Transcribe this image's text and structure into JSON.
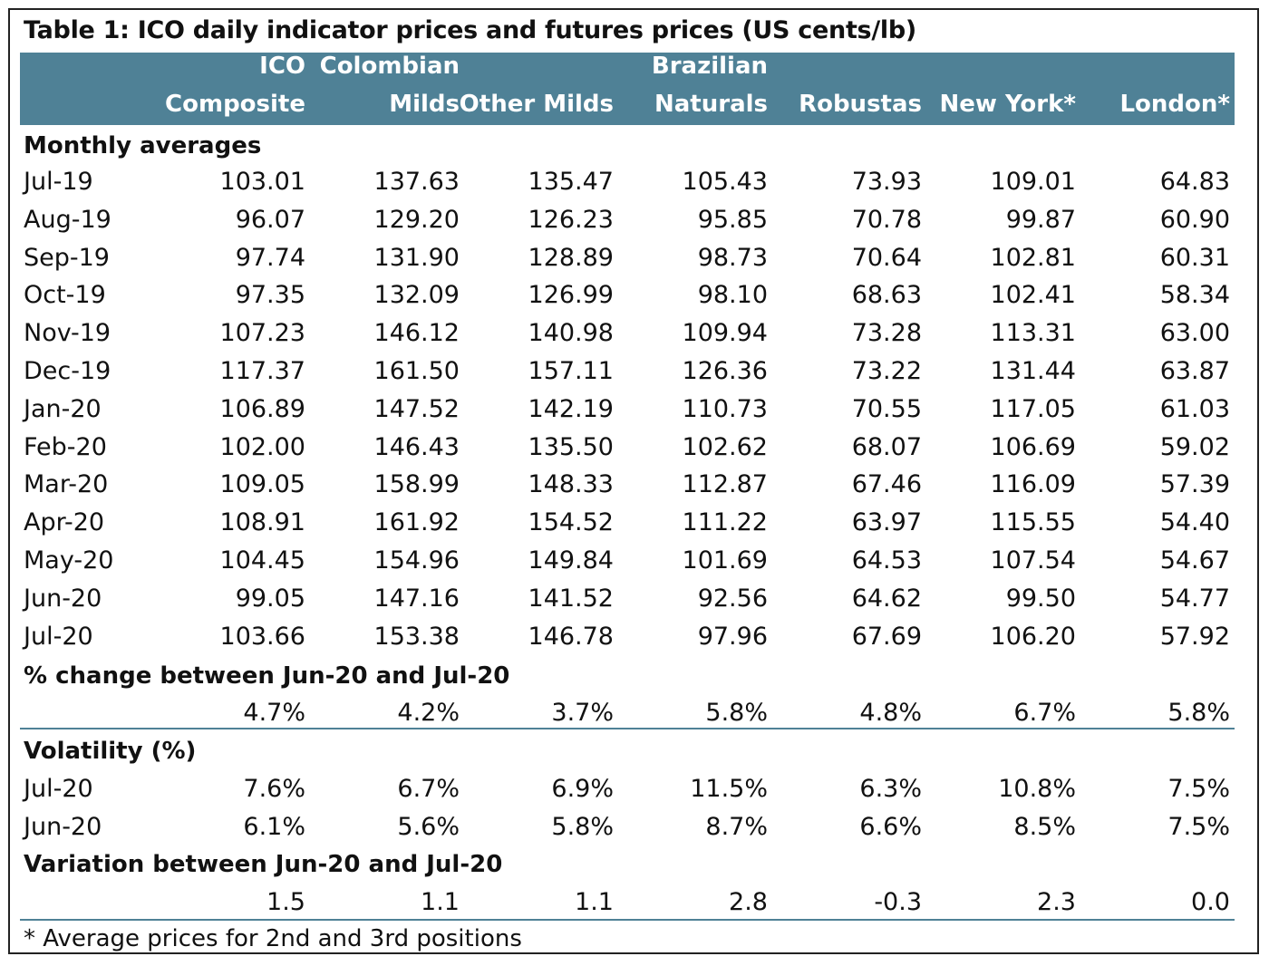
{
  "title": "Table 1: ICO daily indicator prices and futures prices (US cents/lb)",
  "columns": [
    {
      "line1": "ICO",
      "line2": "Composite"
    },
    {
      "line1": "Colombian",
      "line2": "Milds"
    },
    {
      "line1": "",
      "line2": "Other Milds"
    },
    {
      "line1": "Brazilian",
      "line2": "Naturals"
    },
    {
      "line1": "",
      "line2": "Robustas"
    },
    {
      "line1": "",
      "line2": "New York*"
    },
    {
      "line1": "",
      "line2": "London*"
    }
  ],
  "monthly": {
    "heading": "Monthly averages",
    "rows": [
      {
        "label": "Jul-19",
        "values": [
          "103.01",
          "137.63",
          "135.47",
          "105.43",
          "73.93",
          "109.01",
          "64.83"
        ]
      },
      {
        "label": "Aug-19",
        "values": [
          "96.07",
          "129.20",
          "126.23",
          "95.85",
          "70.78",
          "99.87",
          "60.90"
        ]
      },
      {
        "label": "Sep-19",
        "values": [
          "97.74",
          "131.90",
          "128.89",
          "98.73",
          "70.64",
          "102.81",
          "60.31"
        ]
      },
      {
        "label": "Oct-19",
        "values": [
          "97.35",
          "132.09",
          "126.99",
          "98.10",
          "68.63",
          "102.41",
          "58.34"
        ]
      },
      {
        "label": "Nov-19",
        "values": [
          "107.23",
          "146.12",
          "140.98",
          "109.94",
          "73.28",
          "113.31",
          "63.00"
        ]
      },
      {
        "label": "Dec-19",
        "values": [
          "117.37",
          "161.50",
          "157.11",
          "126.36",
          "73.22",
          "131.44",
          "63.87"
        ]
      },
      {
        "label": "Jan-20",
        "values": [
          "106.89",
          "147.52",
          "142.19",
          "110.73",
          "70.55",
          "117.05",
          "61.03"
        ]
      },
      {
        "label": "Feb-20",
        "values": [
          "102.00",
          "146.43",
          "135.50",
          "102.62",
          "68.07",
          "106.69",
          "59.02"
        ]
      },
      {
        "label": "Mar-20",
        "values": [
          "109.05",
          "158.99",
          "148.33",
          "112.87",
          "67.46",
          "116.09",
          "57.39"
        ]
      },
      {
        "label": "Apr-20",
        "values": [
          "108.91",
          "161.92",
          "154.52",
          "111.22",
          "63.97",
          "115.55",
          "54.40"
        ]
      },
      {
        "label": "May-20",
        "values": [
          "104.45",
          "154.96",
          "149.84",
          "101.69",
          "64.53",
          "107.54",
          "54.67"
        ]
      },
      {
        "label": "Jun-20",
        "values": [
          "99.05",
          "147.16",
          "141.52",
          "92.56",
          "64.62",
          "99.50",
          "54.77"
        ]
      },
      {
        "label": "Jul-20",
        "values": [
          "103.66",
          "153.38",
          "146.78",
          "97.96",
          "67.69",
          "106.20",
          "57.92"
        ]
      }
    ]
  },
  "pct_change": {
    "heading": "% change between Jun-20 and Jul-20",
    "values": [
      "4.7%",
      "4.2%",
      "3.7%",
      "5.8%",
      "4.8%",
      "6.7%",
      "5.8%"
    ]
  },
  "volatility": {
    "heading": "Volatility (%)",
    "rows": [
      {
        "label": "Jul-20",
        "values": [
          "7.6%",
          "6.7%",
          "6.9%",
          "11.5%",
          "6.3%",
          "10.8%",
          "7.5%"
        ]
      },
      {
        "label": "Jun-20",
        "values": [
          "6.1%",
          "5.6%",
          "5.8%",
          "8.7%",
          "6.6%",
          "8.5%",
          "7.5%"
        ]
      }
    ]
  },
  "variation": {
    "heading": "Variation between Jun-20 and Jul-20",
    "values": [
      "1.5",
      "1.1",
      "1.1",
      "2.8",
      "-0.3",
      "2.3",
      "0.0"
    ]
  },
  "footnote": "* Average prices for 2nd and 3rd positions",
  "colors": {
    "header_bg": "#4f8196",
    "rule": "#4f8196"
  }
}
